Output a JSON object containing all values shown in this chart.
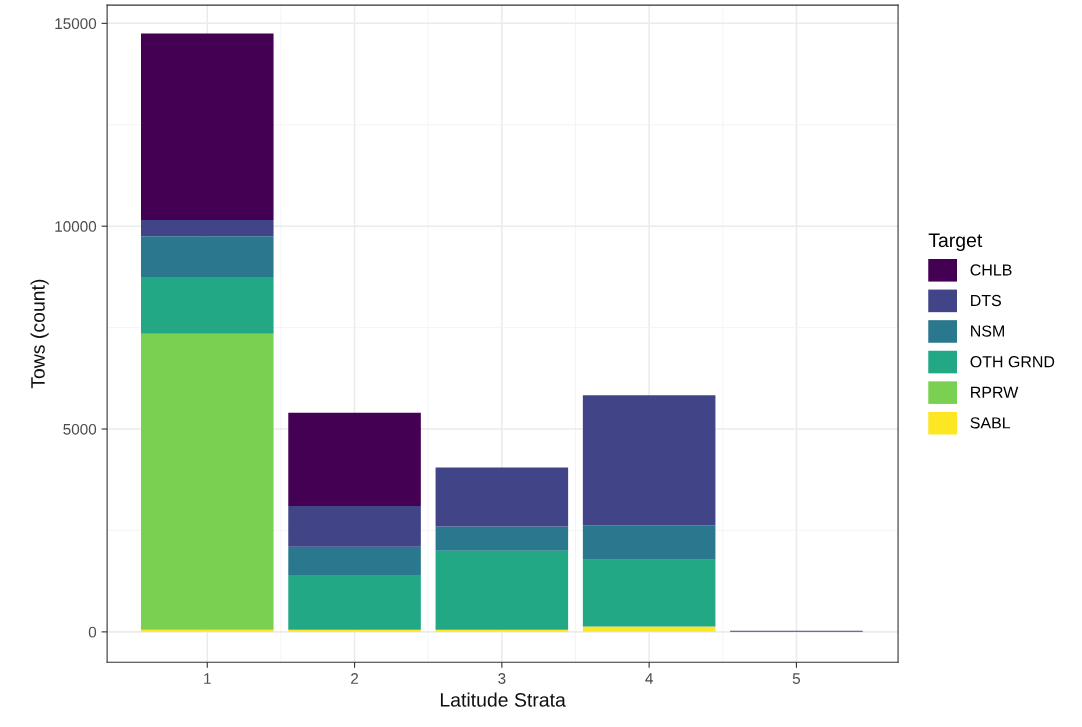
{
  "chart_data": {
    "type": "bar",
    "stacked": true,
    "xlabel": "Latitude Strata",
    "ylabel": "Tows (count)",
    "legend_title": "Target",
    "legend": "right",
    "grid": true,
    "categories": [
      "1",
      "2",
      "3",
      "4",
      "5"
    ],
    "ylim": [
      -750,
      15450
    ],
    "yticks": [
      0,
      5000,
      10000,
      15000
    ],
    "series": [
      {
        "name": "SABL",
        "color": "#fde725",
        "values": [
          50,
          50,
          50,
          130,
          0
        ]
      },
      {
        "name": "RPRW",
        "color": "#7ad151",
        "values": [
          7300,
          0,
          0,
          0,
          0
        ]
      },
      {
        "name": "OTH GRND",
        "color": "#22a884",
        "values": [
          1400,
          1350,
          1950,
          1650,
          0
        ]
      },
      {
        "name": "NSM",
        "color": "#2a788e",
        "values": [
          1000,
          700,
          600,
          850,
          0
        ]
      },
      {
        "name": "DTS",
        "color": "#414487",
        "values": [
          400,
          1000,
          1450,
          3200,
          30
        ]
      },
      {
        "name": "CHLB",
        "color": "#440154",
        "values": [
          4600,
          2300,
          0,
          0,
          0
        ]
      }
    ]
  }
}
